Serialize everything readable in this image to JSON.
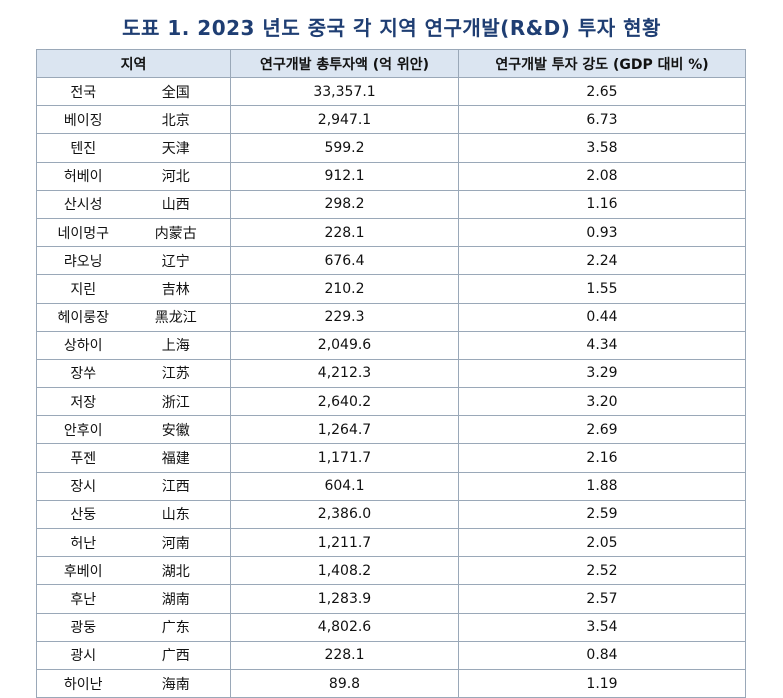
{
  "title": "도표 1. 2023 년도 중국 각 지역 연구개발(R&D) 투자 현황",
  "table": {
    "headers": {
      "region": "지역",
      "investment": "연구개발 총투자액 (억 위안)",
      "intensity": "연구개발 투자 강도 (GDP 대비 %)"
    },
    "rows": [
      {
        "ko": "전국",
        "zh": "全国",
        "investment": "33,357.1",
        "intensity": "2.65"
      },
      {
        "ko": "베이징",
        "zh": "北京",
        "investment": "2,947.1",
        "intensity": "6.73"
      },
      {
        "ko": "텐진",
        "zh": "天津",
        "investment": "599.2",
        "intensity": "3.58"
      },
      {
        "ko": "허베이",
        "zh": "河北",
        "investment": "912.1",
        "intensity": "2.08"
      },
      {
        "ko": "산시성",
        "zh": "山西",
        "investment": "298.2",
        "intensity": "1.16"
      },
      {
        "ko": "네이멍구",
        "zh": "内蒙古",
        "investment": "228.1",
        "intensity": "0.93"
      },
      {
        "ko": "랴오닝",
        "zh": "辽宁",
        "investment": "676.4",
        "intensity": "2.24"
      },
      {
        "ko": "지린",
        "zh": "吉林",
        "investment": "210.2",
        "intensity": "1.55"
      },
      {
        "ko": "헤이룽장",
        "zh": "黑龙江",
        "investment": "229.3",
        "intensity": "0.44"
      },
      {
        "ko": "상하이",
        "zh": "上海",
        "investment": "2,049.6",
        "intensity": "4.34"
      },
      {
        "ko": "장쑤",
        "zh": "江苏",
        "investment": "4,212.3",
        "intensity": "3.29"
      },
      {
        "ko": "저장",
        "zh": "浙江",
        "investment": "2,640.2",
        "intensity": "3.20"
      },
      {
        "ko": "안후이",
        "zh": "安徽",
        "investment": "1,264.7",
        "intensity": "2.69"
      },
      {
        "ko": "푸젠",
        "zh": "福建",
        "investment": "1,171.7",
        "intensity": "2.16"
      },
      {
        "ko": "장시",
        "zh": "江西",
        "investment": "604.1",
        "intensity": "1.88"
      },
      {
        "ko": "산둥",
        "zh": "山东",
        "investment": "2,386.0",
        "intensity": "2.59"
      },
      {
        "ko": "허난",
        "zh": "河南",
        "investment": "1,211.7",
        "intensity": "2.05"
      },
      {
        "ko": "후베이",
        "zh": "湖北",
        "investment": "1,408.2",
        "intensity": "2.52"
      },
      {
        "ko": "후난",
        "zh": "湖南",
        "investment": "1,283.9",
        "intensity": "2.57"
      },
      {
        "ko": "광둥",
        "zh": "广东",
        "investment": "4,802.6",
        "intensity": "3.54"
      },
      {
        "ko": "광시",
        "zh": "广西",
        "investment": "228.1",
        "intensity": "0.84"
      },
      {
        "ko": "하이난",
        "zh": "海南",
        "investment": "89.8",
        "intensity": "1.19"
      }
    ]
  }
}
